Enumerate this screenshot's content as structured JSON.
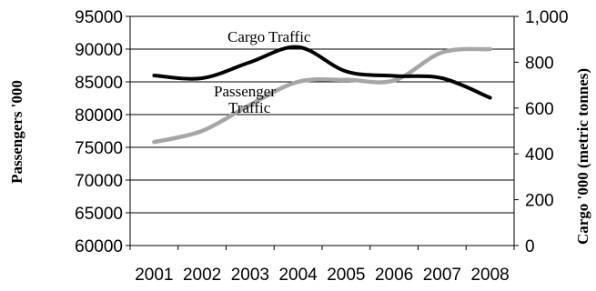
{
  "chart_data": {
    "type": "line",
    "x": [
      "2001",
      "2002",
      "2003",
      "2004",
      "2005",
      "2006",
      "2007",
      "2008"
    ],
    "y_left": {
      "label": "Passengers '000",
      "ylim": [
        60000,
        95000
      ],
      "ticks": [
        "60000",
        "65000",
        "70000",
        "75000",
        "80000",
        "85000",
        "90000",
        "95000"
      ]
    },
    "y_right": {
      "label": "Cargo '000 (metric tonnes)",
      "ylim": [
        0,
        1000
      ],
      "ticks": [
        "0",
        "200",
        "400",
        "600",
        "800",
        "1,000"
      ]
    },
    "series": [
      {
        "name": "Cargo Traffic",
        "axis": "right",
        "color": "#000000",
        "values": [
          742,
          730,
          800,
          866,
          760,
          740,
          730,
          645
        ]
      },
      {
        "name": "Passenger Traffic",
        "axis": "left",
        "color": "#a6a6a6",
        "values": [
          75800,
          77500,
          81500,
          85000,
          85300,
          85200,
          89500,
          90000
        ]
      }
    ],
    "annotations": {
      "cargo": "Cargo Traffic",
      "passenger_line1": "Passenger",
      "passenger_line2": "Traffic"
    },
    "grid": "horizontal"
  }
}
